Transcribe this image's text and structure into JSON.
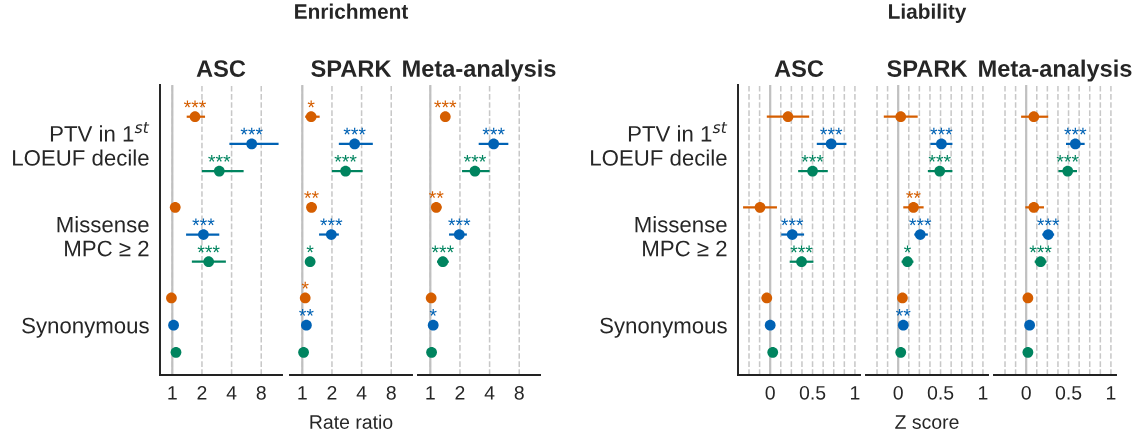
{
  "chart_data": [
    {
      "type": "scatter",
      "orientation": "horizontal",
      "title": "ASC",
      "categories": [
        "PTV in 1$^{st}$\nLOEUF decile",
        "Missense\nMPC ≥ 2",
        "Synonymous"
      ],
      "log": "x",
      "xlim": [
        0.75,
        13
      ],
      "xticks": [
        1,
        2,
        4,
        8
      ],
      "grid": "x",
      "marker": "circle",
      "ref_lines": [
        {
          "axis": "x",
          "value": 1,
          "color": "#c0c0c0"
        }
      ],
      "series": [
        {
          "color": "#d55e00",
          "values": [
            1.7,
            1.07,
            0.98
          ],
          "errors": [
            [
              1.4,
              2.15
            ],
            [
              0.95,
              1.2
            ],
            null
          ],
          "value_labels": [
            "***",
            null,
            null
          ]
        },
        {
          "color": "#0062b4",
          "values": [
            6.4,
            2.07,
            1.03
          ],
          "errors": [
            [
              3.8,
              12
            ],
            [
              1.38,
              3.0
            ],
            null
          ],
          "value_labels": [
            "***",
            "***",
            null
          ]
        },
        {
          "color": "#00845f",
          "values": [
            3.0,
            2.34,
            1.09
          ],
          "errors": [
            [
              2.0,
              5.3
            ],
            [
              1.58,
              3.5
            ],
            null
          ],
          "value_labels": [
            "***",
            "***",
            null
          ]
        }
      ]
    },
    {
      "type": "scatter",
      "orientation": "horizontal",
      "title": "SPARK",
      "annotations": [
        "Enrichment"
      ],
      "xlabel": "Rate ratio",
      "tick_labels": "x",
      "categories": [
        null,
        null,
        null
      ],
      "log": "x",
      "xlim": [
        0.75,
        13
      ],
      "xticks": [
        1,
        2,
        4,
        8
      ],
      "grid": "x",
      "marker": "circle",
      "ref_lines": [
        {
          "axis": "x",
          "value": 1,
          "color": "#c0c0c0"
        }
      ],
      "series": [
        {
          "color": "#d55e00",
          "values": [
            1.23,
            1.24,
            1.07
          ],
          "errors": [
            [
              1.07,
              1.5
            ],
            [
              1.13,
              1.4
            ],
            null
          ],
          "value_labels": [
            "*",
            "**",
            "*"
          ]
        },
        {
          "color": "#0062b4",
          "values": [
            3.4,
            1.97,
            1.1
          ],
          "errors": [
            [
              2.35,
              5.2
            ],
            [
              1.48,
              2.35
            ],
            null
          ],
          "value_labels": [
            "***",
            "***",
            "**"
          ]
        },
        {
          "color": "#00845f",
          "values": [
            2.75,
            1.2,
            1.03
          ],
          "errors": [
            [
              2.0,
              4.1
            ],
            [
              1.07,
              1.35
            ],
            null
          ],
          "value_labels": [
            "***",
            "*",
            null
          ]
        }
      ]
    },
    {
      "type": "scatter",
      "orientation": "horizontal",
      "title": "Meta-analysis",
      "tick_labels": "x",
      "categories": [
        null,
        null,
        null
      ],
      "log": "x",
      "xlim": [
        0.75,
        13
      ],
      "xticks": [
        1,
        2,
        4,
        8
      ],
      "grid": "x",
      "marker": "circle",
      "ref_lines": [
        {
          "axis": "x",
          "value": 1,
          "color": "#c0c0c0"
        }
      ],
      "series": [
        {
          "color": "#d55e00",
          "values": [
            1.42,
            1.15,
            1.02
          ],
          "errors": [
            [
              1.27,
              1.58
            ],
            [
              1.04,
              1.3
            ],
            null
          ],
          "value_labels": [
            "***",
            "**",
            null
          ]
        },
        {
          "color": "#0062b4",
          "values": [
            4.4,
            1.97,
            1.07
          ],
          "errors": [
            [
              3.1,
              6.2
            ],
            [
              1.55,
              2.35
            ],
            null
          ],
          "value_labels": [
            "***",
            "***",
            "*"
          ]
        },
        {
          "color": "#00845f",
          "values": [
            2.84,
            1.34,
            1.03
          ],
          "errors": [
            [
              2.1,
              4.0
            ],
            [
              1.17,
              1.54
            ],
            null
          ],
          "value_labels": [
            "***",
            "***",
            null
          ]
        }
      ]
    },
    {
      "type": "scatter",
      "orientation": "horizontal",
      "title": "ASC",
      "categories": [
        "PTV in 1$^{st}$\nLOEUF decile",
        "Missense\nMPC ≥ 2",
        "Synonymous"
      ],
      "xlim": [
        -0.38,
        1.06
      ],
      "xticks": [
        {
          "value": -0.25,
          "label": null
        },
        {
          "value": -0.125,
          "label": null
        },
        0,
        {
          "value": 0.125,
          "label": null
        },
        {
          "value": 0.25,
          "label": null
        },
        {
          "value": 0.375,
          "label": null
        },
        0.5,
        {
          "value": 0.625,
          "label": null
        },
        {
          "value": 0.75,
          "label": null
        },
        {
          "value": 0.875,
          "label": null
        },
        1
      ],
      "grid": "x",
      "marker": "circle",
      "ref_lines": [
        {
          "axis": "x",
          "value": 0,
          "color": "#c0c0c0"
        }
      ],
      "series": [
        {
          "color": "#d55e00",
          "values": [
            0.21,
            -0.12,
            -0.04
          ],
          "errors": [
            [
              -0.04,
              0.46
            ],
            [
              -0.32,
              0.08
            ],
            [
              -0.1,
              0.02
            ]
          ]
        },
        {
          "color": "#0062b4",
          "values": [
            0.72,
            0.26,
            0.0
          ],
          "errors": [
            [
              0.55,
              0.9
            ],
            [
              0.13,
              0.4
            ],
            null
          ],
          "value_labels": [
            "***",
            "***",
            null
          ]
        },
        {
          "color": "#00845f",
          "values": [
            0.5,
            0.37,
            0.03
          ],
          "errors": [
            [
              0.33,
              0.68
            ],
            [
              0.23,
              0.51
            ],
            null
          ],
          "value_labels": [
            "***",
            "***",
            null
          ]
        }
      ]
    },
    {
      "type": "scatter",
      "orientation": "horizontal",
      "title": "SPARK",
      "annotations": [
        "Liability"
      ],
      "xlabel": "Z score",
      "tick_labels": "x",
      "categories": [
        null,
        null,
        null
      ],
      "xlim": [
        -0.38,
        1.06
      ],
      "xticks": [
        {
          "value": -0.25,
          "label": null
        },
        {
          "value": -0.125,
          "label": null
        },
        0,
        {
          "value": 0.125,
          "label": null
        },
        {
          "value": 0.25,
          "label": null
        },
        {
          "value": 0.375,
          "label": null
        },
        0.5,
        {
          "value": 0.625,
          "label": null
        },
        {
          "value": 0.75,
          "label": null
        },
        {
          "value": 0.875,
          "label": null
        },
        1
      ],
      "grid": "x",
      "marker": "circle",
      "ref_lines": [
        {
          "axis": "x",
          "value": 0,
          "color": "#c0c0c0"
        }
      ],
      "series": [
        {
          "color": "#d55e00",
          "values": [
            0.03,
            0.18,
            0.05
          ],
          "errors": [
            [
              -0.17,
              0.23
            ],
            [
              0.06,
              0.3
            ],
            null
          ],
          "value_labels": [
            null,
            "**",
            null
          ]
        },
        {
          "color": "#0062b4",
          "values": [
            0.51,
            0.26,
            0.06
          ],
          "errors": [
            [
              0.38,
              0.64
            ],
            [
              0.19,
              0.35
            ],
            null
          ],
          "value_labels": [
            "***",
            "***",
            "**"
          ]
        },
        {
          "color": "#00845f",
          "values": [
            0.49,
            0.11,
            0.03
          ],
          "errors": [
            [
              0.35,
              0.64
            ],
            [
              0.04,
              0.18
            ],
            null
          ],
          "value_labels": [
            "***",
            "*",
            null
          ]
        }
      ]
    },
    {
      "type": "scatter",
      "orientation": "horizontal",
      "title": "Meta-analysis",
      "tick_labels": "x",
      "categories": [
        null,
        null,
        null
      ],
      "xlim": [
        -0.38,
        1.06
      ],
      "xticks": [
        {
          "value": -0.25,
          "label": null
        },
        {
          "value": -0.125,
          "label": null
        },
        0,
        {
          "value": 0.125,
          "label": null
        },
        {
          "value": 0.25,
          "label": null
        },
        {
          "value": 0.375,
          "label": null
        },
        0.5,
        {
          "value": 0.625,
          "label": null
        },
        {
          "value": 0.75,
          "label": null
        },
        {
          "value": 0.875,
          "label": null
        },
        1
      ],
      "grid": "x",
      "marker": "circle",
      "ref_lines": [
        {
          "axis": "x",
          "value": 0,
          "color": "#c0c0c0"
        }
      ],
      "series": [
        {
          "color": "#d55e00",
          "values": [
            0.09,
            0.09,
            0.02
          ],
          "errors": [
            [
              -0.06,
              0.26
            ],
            [
              -0.01,
              0.21
            ],
            null
          ]
        },
        {
          "color": "#0062b4",
          "values": [
            0.58,
            0.26,
            0.04
          ],
          "errors": [
            [
              0.47,
              0.69
            ],
            [
              0.19,
              0.33
            ],
            null
          ],
          "value_labels": [
            "***",
            "***",
            null
          ]
        },
        {
          "color": "#00845f",
          "values": [
            0.49,
            0.17,
            0.02
          ],
          "errors": [
            [
              0.38,
              0.6
            ],
            [
              0.1,
              0.24
            ],
            null
          ],
          "value_labels": [
            "***",
            "***",
            null
          ]
        }
      ]
    }
  ]
}
